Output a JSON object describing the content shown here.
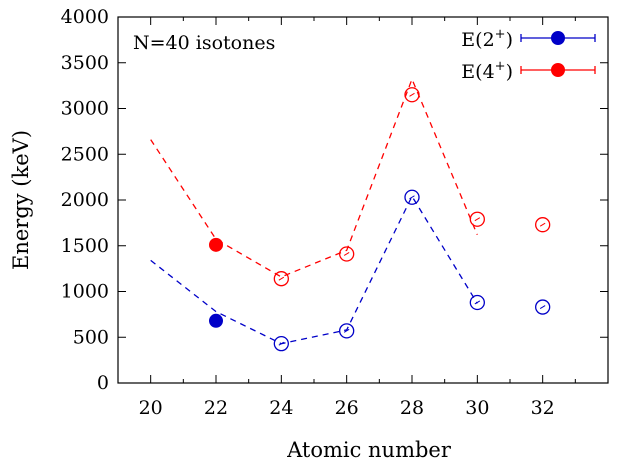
{
  "chart_data": {
    "type": "scatter",
    "title": "",
    "annotation": "N=40 isotones",
    "xlabel": "Atomic number",
    "ylabel": "Energy (keV)",
    "xlim": [
      19,
      34
    ],
    "ylim": [
      0,
      4000
    ],
    "xticks": [
      "20",
      "22",
      "24",
      "26",
      "28",
      "30",
      "32"
    ],
    "yticks": [
      "0",
      "500",
      "1000",
      "1500",
      "2000",
      "2500",
      "3000",
      "3500",
      "4000"
    ],
    "legend_position": "top-right",
    "series": [
      {
        "name": "E(2+)",
        "name_base": "E(2",
        "name_sup": "+",
        "name_close": ")",
        "color": "#0000c8",
        "x": [
          22,
          24,
          26,
          28,
          30,
          32
        ],
        "y": [
          680,
          430,
          570,
          2030,
          880,
          830
        ],
        "marker": [
          "filled",
          "open",
          "open",
          "open",
          "open",
          "open"
        ]
      },
      {
        "name": "E(4+)",
        "name_base": "E(4",
        "name_sup": "+",
        "name_close": ")",
        "color": "#ff0000",
        "x": [
          22,
          24,
          26,
          28,
          30,
          32
        ],
        "y": [
          1510,
          1140,
          1410,
          3150,
          1790,
          1730
        ],
        "marker": [
          "filled",
          "open",
          "open",
          "open",
          "open",
          "open"
        ]
      }
    ],
    "calculation_lines": [
      {
        "color": "#0000c8",
        "style": "dashed",
        "x": [
          20,
          22,
          24,
          26,
          28,
          30
        ],
        "y": [
          1340,
          780,
          430,
          580,
          2040,
          870
        ]
      },
      {
        "color": "#ff0000",
        "style": "dashed",
        "x": [
          20,
          22,
          24,
          26,
          28,
          30
        ],
        "y": [
          2660,
          1570,
          1160,
          1450,
          3320,
          1620
        ]
      }
    ]
  }
}
